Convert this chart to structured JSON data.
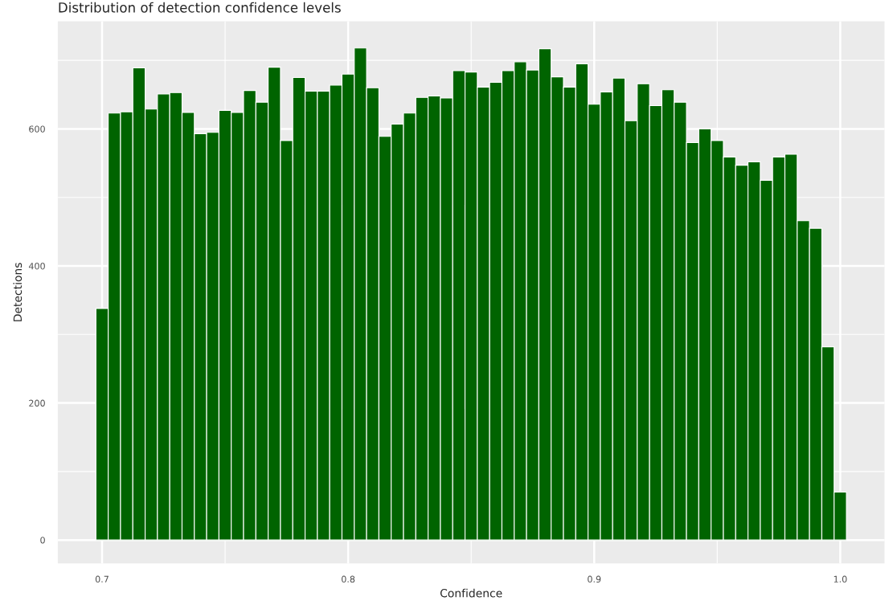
{
  "chart_data": {
    "type": "histogram",
    "title": "Distribution of detection confidence levels",
    "xlabel": "Confidence",
    "ylabel": "Detections",
    "bins": [
      0.6975,
      0.7025,
      0.7075,
      0.7125,
      0.7175,
      0.7225,
      0.7275,
      0.7325,
      0.7375,
      0.7425,
      0.7475,
      0.7525,
      0.7575,
      0.7625,
      0.7675,
      0.7725,
      0.7775,
      0.7825,
      0.7875,
      0.7925,
      0.7975,
      0.8025,
      0.8075,
      0.8125,
      0.8175,
      0.8225,
      0.8275,
      0.8325,
      0.8375,
      0.8425,
      0.8475,
      0.8525,
      0.8575,
      0.8625,
      0.8675,
      0.8725,
      0.8775,
      0.8825,
      0.8875,
      0.8925,
      0.8975,
      0.9025,
      0.9075,
      0.9125,
      0.9175,
      0.9225,
      0.9275,
      0.9325,
      0.9375,
      0.9425,
      0.9475,
      0.9525,
      0.9575,
      0.9625,
      0.9675,
      0.9725,
      0.9775,
      0.9825,
      0.9875,
      0.9925,
      0.9975,
      1.0025
    ],
    "values": [
      338,
      623,
      625,
      689,
      629,
      651,
      653,
      624,
      593,
      595,
      627,
      624,
      656,
      639,
      690,
      583,
      675,
      655,
      655,
      664,
      680,
      718,
      660,
      589,
      607,
      623,
      646,
      648,
      645,
      685,
      683,
      661,
      668,
      685,
      698,
      686,
      717,
      676,
      661,
      695,
      636,
      654,
      674,
      612,
      666,
      634,
      657,
      639,
      580,
      600,
      583,
      559,
      547,
      552,
      525,
      559,
      563,
      466,
      455,
      282,
      70
    ],
    "color": "#006400",
    "xlim": [
      0.682,
      1.018
    ],
    "xticks": [
      0.7,
      0.8,
      0.9,
      {
        "value": 1.0,
        "label": "1.0"
      }
    ],
    "ylim": [
      -34,
      757
    ],
    "yticks": [
      0,
      200,
      400,
      600
    ],
    "grid": true
  }
}
